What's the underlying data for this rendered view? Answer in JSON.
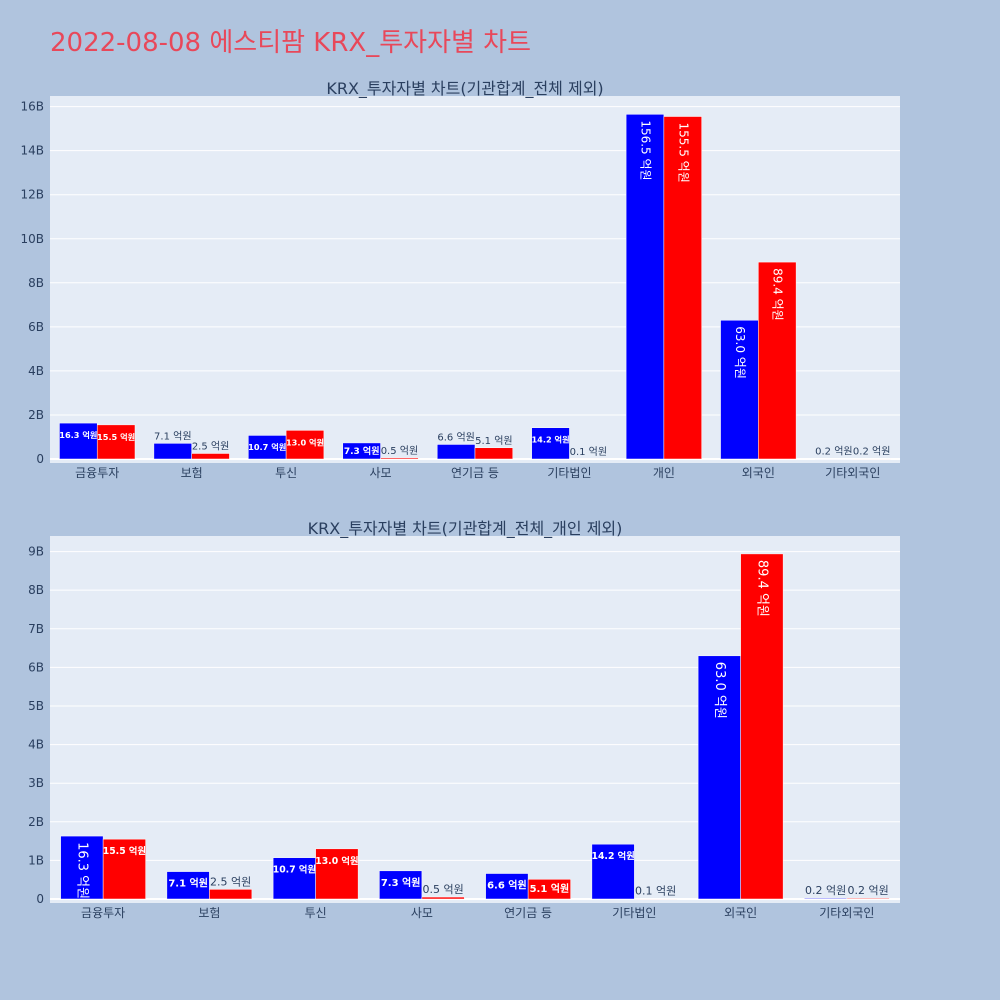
{
  "page": {
    "title": "2022-08-08 에스티팜 KRX_투자자별 차트"
  },
  "colors": {
    "buy": "#0000ff",
    "sell": "#ff0000",
    "plot_bg": "#e5ecf6",
    "page_bg": "#b0c4de",
    "title": "#e8485a"
  },
  "chart_data": [
    {
      "type": "bar",
      "title": "KRX_투자자별 차트(기관합계_전체 제외)",
      "categories": [
        "금융투자",
        "보험",
        "투신",
        "사모",
        "연기금 등",
        "기타법인",
        "개인",
        "외국인",
        "기타외국인"
      ],
      "ylim": [
        0,
        16.3
      ],
      "yticks": [
        0,
        2,
        4,
        6,
        8,
        10,
        12,
        14,
        16
      ],
      "ytick_labels": [
        "0",
        "2B",
        "4B",
        "6B",
        "8B",
        "10B",
        "12B",
        "14B",
        "16B"
      ],
      "grid": true,
      "series": [
        {
          "values": [
            1.63,
            0.71,
            1.07,
            0.73,
            0.66,
            1.42,
            15.65,
            6.3,
            0.02
          ],
          "labels": [
            "16.3 억원",
            "7.1 억원",
            "10.7 억원",
            "7.3 억원",
            "6.6 억원",
            "14.2 억원",
            "156.5 억원",
            "63.0 억원",
            "0.2 억원"
          ]
        },
        {
          "values": [
            1.55,
            0.25,
            1.3,
            0.05,
            0.51,
            0.01,
            15.55,
            8.94,
            0.02
          ],
          "labels": [
            "15.5 억원",
            "2.5 억원",
            "13.0 억원",
            "0.5 억원",
            "5.1 억원",
            "0.1 억원",
            "155.5 억원",
            "89.4 억원",
            "0.2 억원"
          ]
        }
      ]
    },
    {
      "type": "bar",
      "title": "KRX_투자자별 차트(기관합계_전체_개인 제외)",
      "categories": [
        "금융투자",
        "보험",
        "투신",
        "사모",
        "연기금 등",
        "기타법인",
        "외국인",
        "기타외국인"
      ],
      "ylim": [
        0,
        9.3
      ],
      "yticks": [
        0,
        1,
        2,
        3,
        4,
        5,
        6,
        7,
        8,
        9
      ],
      "ytick_labels": [
        "0",
        "1B",
        "2B",
        "3B",
        "4B",
        "5B",
        "6B",
        "7B",
        "8B",
        "9B"
      ],
      "grid": true,
      "series": [
        {
          "values": [
            1.63,
            0.71,
            1.07,
            0.73,
            0.66,
            1.42,
            6.3,
            0.02
          ],
          "labels": [
            "16.3 억원",
            "7.1 억원",
            "10.7 억원",
            "7.3 억원",
            "6.6 억원",
            "14.2 억원",
            "63.0 억원",
            "0.2 억원"
          ]
        },
        {
          "values": [
            1.55,
            0.25,
            1.3,
            0.05,
            0.51,
            0.01,
            8.94,
            0.02
          ],
          "labels": [
            "15.5 억원",
            "2.5 억원",
            "13.0 억원",
            "0.5 억원",
            "5.1 억원",
            "0.1 억원",
            "89.4 억원",
            "0.2 억원"
          ]
        }
      ]
    }
  ]
}
